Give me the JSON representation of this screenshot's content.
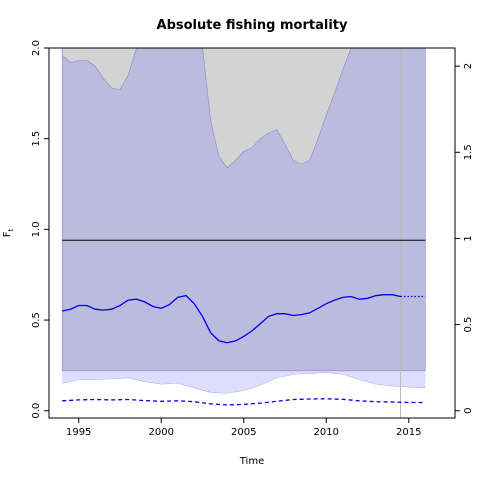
{
  "chart_data": {
    "type": "line",
    "title": "Absolute fishing mortality",
    "xlabel": "Time",
    "ylabel": "F",
    "ylabel_subscript": "t",
    "xlim": [
      1993.2,
      2017.8
    ],
    "ylim": [
      -0.04,
      2.0
    ],
    "left_ticks": [
      0.0,
      0.5,
      1.0,
      1.5,
      2.0
    ],
    "left_tick_labels": [
      "0.0",
      "0.5",
      "1.0",
      "1.5",
      "2.0"
    ],
    "right_ticks": [
      0,
      0.5,
      1,
      1.5,
      2
    ],
    "right_tick_labels": [
      "0",
      "0.5",
      "1",
      "1.5",
      "2"
    ],
    "x_ticks": [
      1995,
      2000,
      2005,
      2010,
      2015
    ],
    "x_tick_labels": [
      "1995",
      "2000",
      "2005",
      "2010",
      "2015"
    ],
    "reference_line": 0.94,
    "vertical_marker": 2014.5,
    "background_band": {
      "x0": 1994,
      "x1": 2016,
      "y0": 0.22,
      "y1": 2.0
    },
    "gray_band_upper": {
      "x": [
        1994,
        1994.5,
        1995,
        1995.5,
        1996,
        1996.5,
        1997,
        1997.5,
        1998,
        1998.5,
        1999,
        2002.5,
        2003,
        2003.5,
        2004,
        2004.5,
        2005,
        2005.5,
        2006,
        2006.5,
        2007,
        2007.5,
        2008,
        2008.5,
        2009,
        2009.5,
        2010,
        2010.5,
        2011,
        2011.5
      ],
      "y": [
        1.96,
        1.92,
        1.93,
        1.93,
        1.9,
        1.83,
        1.78,
        1.77,
        1.85,
        2.0,
        2.0,
        2.0,
        1.6,
        1.4,
        1.34,
        1.38,
        1.43,
        1.45,
        1.5,
        1.53,
        1.55,
        1.47,
        1.38,
        1.36,
        1.38,
        1.5,
        1.63,
        1.75,
        1.88,
        2.0
      ]
    },
    "lower_ci_band": {
      "x": [
        1994,
        1995,
        1996,
        1997,
        1998,
        1999,
        2000,
        2001,
        2002,
        2003,
        2004,
        2005,
        2006,
        2007,
        2008,
        2009,
        2010,
        2011,
        2012,
        2013,
        2014,
        2015,
        2016
      ],
      "upper": [
        0.22,
        0.22,
        0.22,
        0.22,
        0.22,
        0.22,
        0.22,
        0.22,
        0.22,
        0.22,
        0.22,
        0.22,
        0.22,
        0.22,
        0.22,
        0.22,
        0.22,
        0.22,
        0.22,
        0.22,
        0.22,
        0.22,
        0.22
      ],
      "lower": [
        0.15,
        0.17,
        0.17,
        0.175,
        0.18,
        0.16,
        0.145,
        0.15,
        0.125,
        0.1,
        0.095,
        0.11,
        0.14,
        0.18,
        0.2,
        0.205,
        0.21,
        0.2,
        0.17,
        0.145,
        0.135,
        0.13,
        0.125
      ]
    },
    "series": [
      {
        "color": "#0000ee",
        "style": "solid",
        "x": [
          1994,
          1994.5,
          1995,
          1995.5,
          1996,
          1996.5,
          1997,
          1997.5,
          1998,
          1998.5,
          1999,
          1999.5,
          2000,
          2000.5,
          2001,
          2001.5,
          2002,
          2002.5,
          2003,
          2003.5,
          2004,
          2004.5,
          2005,
          2005.5,
          2006,
          2006.5,
          2007,
          2007.5,
          2008,
          2008.5,
          2009,
          2009.5,
          2010,
          2010.5,
          2011,
          2011.5,
          2012,
          2012.5,
          2013,
          2013.5,
          2014,
          2014.5
        ],
        "y": [
          0.55,
          0.56,
          0.58,
          0.58,
          0.56,
          0.555,
          0.56,
          0.58,
          0.61,
          0.615,
          0.6,
          0.575,
          0.565,
          0.585,
          0.625,
          0.635,
          0.59,
          0.52,
          0.43,
          0.385,
          0.375,
          0.385,
          0.41,
          0.44,
          0.48,
          0.52,
          0.535,
          0.535,
          0.525,
          0.53,
          0.54,
          0.565,
          0.59,
          0.61,
          0.625,
          0.63,
          0.615,
          0.62,
          0.635,
          0.64,
          0.64,
          0.63
        ]
      },
      {
        "color": "#0000ee",
        "style": "dotted",
        "x": [
          2014.5,
          2015,
          2015.5,
          2016
        ],
        "y": [
          0.63,
          0.63,
          0.63,
          0.63
        ]
      },
      {
        "color": "#0000ee",
        "style": "dashed",
        "x": [
          1994,
          1995,
          1996,
          1997,
          1998,
          1999,
          2000,
          2001,
          2002,
          2003,
          2004,
          2005,
          2006,
          2007,
          2008,
          2009,
          2010,
          2011,
          2012,
          2013,
          2014,
          2015,
          2016
        ],
        "y": [
          0.055,
          0.06,
          0.062,
          0.06,
          0.062,
          0.056,
          0.052,
          0.055,
          0.05,
          0.038,
          0.032,
          0.035,
          0.042,
          0.052,
          0.062,
          0.065,
          0.066,
          0.063,
          0.055,
          0.05,
          0.048,
          0.046,
          0.045
        ]
      }
    ],
    "colors": {
      "band": "#bbbbdd",
      "band_edge": "#8888cc",
      "gray": "#d3d3d3",
      "lower_band": "#ddddff",
      "line": "#0000ee",
      "reference": "#000000",
      "marker": "#bbbbbb"
    }
  }
}
